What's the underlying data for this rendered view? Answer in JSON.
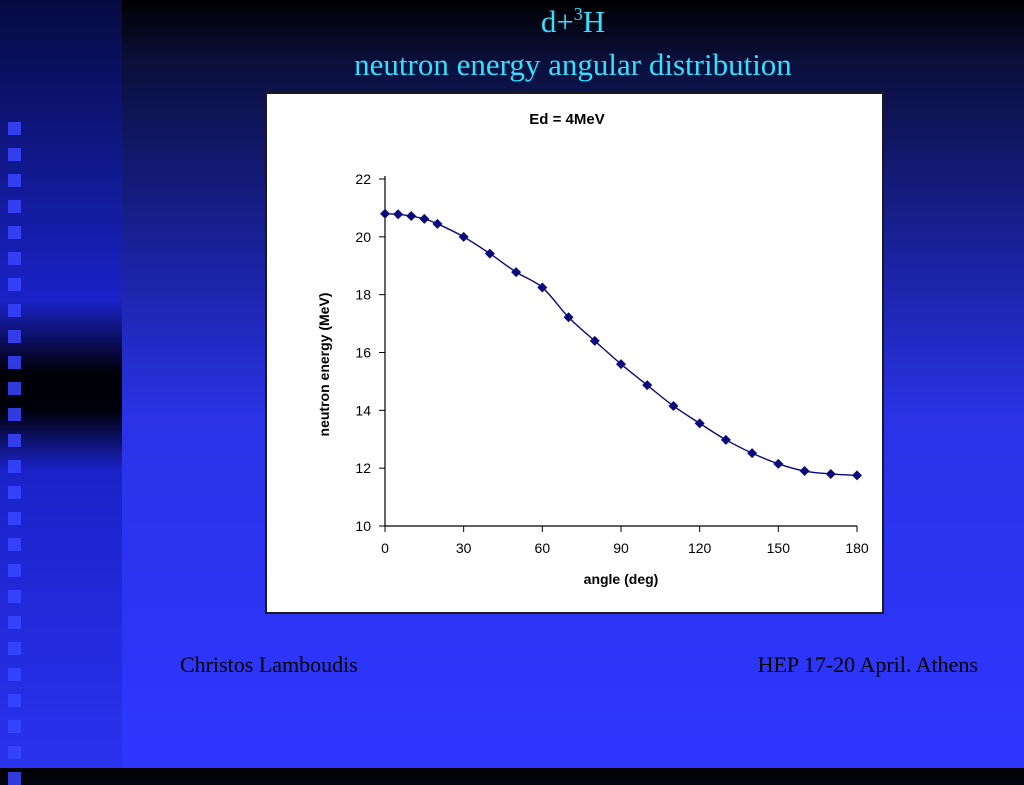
{
  "slide": {
    "title_main": "d+",
    "title_sup": "3",
    "title_tail": "H",
    "subtitle": "neutron energy angular distribution",
    "footer_left": "Christos Lamboudis",
    "footer_right": "HEP 17-20 April. Athens"
  },
  "colors": {
    "title": "#33e0ff",
    "series": "#0a0a7a",
    "background": "#2e36ff"
  },
  "chart_data": {
    "type": "line",
    "title": "Ed = 4MeV",
    "xlabel": "angle (deg)",
    "ylabel": "neutron energy (MeV)",
    "xlim": [
      0,
      180
    ],
    "ylim": [
      10,
      22
    ],
    "xticks": [
      0,
      30,
      60,
      90,
      120,
      150,
      180
    ],
    "yticks": [
      10,
      12,
      14,
      16,
      18,
      20,
      22
    ],
    "grid": false,
    "legend": "none",
    "marker": "diamond",
    "x": [
      0,
      5,
      10,
      15,
      20,
      30,
      40,
      50,
      60,
      70,
      80,
      90,
      100,
      110,
      120,
      130,
      140,
      150,
      160,
      170,
      180
    ],
    "y": [
      20.8,
      20.78,
      20.72,
      20.62,
      20.45,
      20.0,
      19.42,
      18.78,
      18.25,
      17.22,
      16.4,
      15.6,
      14.87,
      14.15,
      13.55,
      12.98,
      12.52,
      12.15,
      11.9,
      11.8,
      11.75
    ]
  }
}
